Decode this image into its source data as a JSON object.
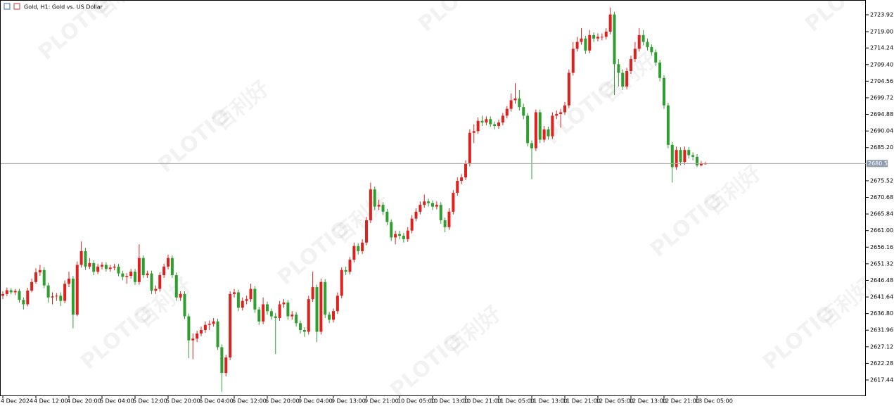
{
  "chart_data": {
    "type": "candlestick",
    "title": "Gold, H1:  Gold vs. US Dollar",
    "watermarks": [
      "PLOTIO",
      "百利好"
    ],
    "categories": [
      "4 Dec 2024",
      null,
      null,
      null,
      null,
      null,
      null,
      null,
      "4 Dec 12:00",
      null,
      null,
      null,
      null,
      null,
      null,
      null,
      "4 Dec 20:00",
      null,
      null,
      null,
      null,
      null,
      null,
      null,
      "5 Dec 04:00",
      null,
      null,
      null,
      null,
      null,
      null,
      null,
      "5 Dec 12:00",
      null,
      null,
      null,
      null,
      null,
      null,
      null,
      "5 Dec 20:00",
      null,
      null,
      null,
      null,
      null,
      null,
      null,
      "6 Dec 04:00",
      null,
      null,
      null,
      null,
      null,
      null,
      null,
      "6 Dec 12:00",
      null,
      null,
      null,
      null,
      null,
      null,
      null,
      "6 Dec 20:00",
      null,
      null,
      null,
      null,
      null,
      null,
      null,
      "9 Dec 04:00",
      null,
      null,
      null,
      null,
      null,
      null,
      null,
      "9 Dec 13:00",
      null,
      null,
      null,
      null,
      null,
      null,
      null,
      "9 Dec 21:00",
      null,
      null,
      null,
      null,
      null,
      null,
      null,
      "10 Dec 05:00",
      null,
      null,
      null,
      null,
      null,
      null,
      null,
      "10 Dec 13:00",
      null,
      null,
      null,
      null,
      null,
      null,
      null,
      "10 Dec 21:00",
      null,
      null,
      null,
      null,
      null,
      null,
      null,
      "11 Dec 05:00",
      null,
      null,
      null,
      null,
      null,
      null,
      null,
      "11 Dec 13:00",
      null,
      null,
      null,
      null,
      null,
      null,
      null,
      "11 Dec 21:00",
      null,
      null,
      null,
      null,
      null,
      null,
      null,
      "12 Dec 05:00",
      null,
      null,
      null,
      null,
      null,
      null,
      null,
      "12 Dec 13:00",
      null,
      null,
      null,
      null,
      null,
      null,
      null,
      "12 Dec 21:00",
      null,
      null,
      null,
      null,
      null,
      null,
      null,
      "13 Dec 05:00",
      null,
      null
    ],
    "open": [
      2642.0,
      2642.5,
      2643.6,
      2643.0,
      2643.4,
      2640.8,
      2639.5,
      2643.5,
      2646.0,
      2648.8,
      2649.5,
      2645.0,
      2641.5,
      2641.8,
      2642.0,
      2640.5,
      2645.5,
      2647.0,
      2636.5,
      2651.0,
      2655.0,
      2650.5,
      2651.5,
      2649.0,
      2650.5,
      2651.0,
      2649.8,
      2650.2,
      2650.5,
      2648.5,
      2647.5,
      2647.8,
      2649.0,
      2646.0,
      2653.0,
      2648.0,
      2648.5,
      2643.5,
      2644.0,
      2648.0,
      2650.5,
      2653.0,
      2648.0,
      2641.5,
      2642.5,
      2636.0,
      2629.0,
      2629.5,
      2631.0,
      2632.0,
      2633.5,
      2633.8,
      2634.5,
      2627.0,
      2619.5,
      2624.0,
      2642.5,
      2643.0,
      2638.5,
      2640.5,
      2641.0,
      2644.0,
      2638.0,
      2634.5,
      2639.5,
      2637.5,
      2636.0,
      2635.5,
      2639.5,
      2640.0,
      2636.0,
      2636.5,
      2634.0,
      2632.0,
      2631.5,
      2641.0,
      2644.5,
      2631.5,
      2646.0,
      2636.5,
      2635.0,
      2637.5,
      2642.0,
      2649.5,
      2649.0,
      2652.5,
      2656.5,
      2655.0,
      2657.5,
      2664.0,
      2673.0,
      2668.0,
      2668.5,
      2666.5,
      2663.5,
      2659.0,
      2660.0,
      2659.5,
      2658.5,
      2661.0,
      2664.5,
      2666.5,
      2668.5,
      2669.5,
      2669.0,
      2668.0,
      2668.5,
      2664.0,
      2662.0,
      2666.5,
      2672.0,
      2675.5,
      2676.5,
      2680.5,
      2689.5,
      2690.0,
      2693.0,
      2692.5,
      2693.5,
      2692.0,
      2691.5,
      2692.5,
      2694.5,
      2696.5,
      2699.0,
      2699.5,
      2697.0,
      2694.5,
      2686.5,
      2685.0,
      2695.5,
      2687.5,
      2690.5,
      2688.5,
      2694.5,
      2695.0,
      2695.5,
      2697.5,
      2707.0,
      2714.0,
      2716.0,
      2717.0,
      2713.5,
      2718.0,
      2717.0,
      2717.5,
      2717.5,
      2719.0,
      2724.0,
      2709.5,
      2707.0,
      2703.0,
      2707.5,
      2711.0,
      2714.0,
      2718.0,
      2716.0,
      2714.5,
      2713.0,
      2710.0,
      2705.5,
      2697.5,
      2686.0,
      2679.5,
      2684.5,
      2681.0,
      2684.5,
      2683.0,
      2682.5,
      2680.0,
      2680.5
    ],
    "high": [
      2643.3,
      2644.4,
      2644.2,
      2644.0,
      2644.0,
      2641.5,
      2644.3,
      2647.0,
      2650.0,
      2651.0,
      2650.3,
      2645.8,
      2643.0,
      2642.8,
      2643.0,
      2646.5,
      2649.0,
      2647.8,
      2652.0,
      2657.8,
      2656.0,
      2653.0,
      2652.3,
      2651.3,
      2651.8,
      2651.8,
      2651.0,
      2651.3,
      2651.3,
      2649.3,
      2648.6,
      2649.8,
      2649.8,
      2657.0,
      2653.8,
      2649.3,
      2649.3,
      2645.0,
      2648.8,
      2651.3,
      2654.0,
      2653.8,
      2648.8,
      2643.3,
      2643.3,
      2636.8,
      2631.0,
      2631.8,
      2633.0,
      2634.5,
      2634.8,
      2635.5,
      2635.3,
      2627.8,
      2624.8,
      2643.3,
      2644.0,
      2643.8,
      2641.5,
      2642.0,
      2645.5,
      2644.8,
      2638.8,
      2641.5,
      2640.3,
      2638.3,
      2637.0,
      2640.5,
      2641.0,
      2640.8,
      2637.5,
      2637.3,
      2634.8,
      2632.8,
      2642.0,
      2649.0,
      2645.3,
      2647.0,
      2646.8,
      2637.3,
      2638.3,
      2643.0,
      2650.3,
      2650.5,
      2653.3,
      2657.5,
      2657.3,
      2658.5,
      2665.0,
      2675.0,
      2673.8,
      2670.0,
      2669.3,
      2667.3,
      2664.3,
      2661.0,
      2661.0,
      2660.3,
      2662.0,
      2665.5,
      2667.5,
      2669.5,
      2671.5,
      2670.3,
      2669.8,
      2669.5,
      2669.3,
      2664.8,
      2667.5,
      2672.8,
      2676.5,
      2677.5,
      2681.5,
      2690.5,
      2692.0,
      2694.0,
      2694.5,
      2694.3,
      2694.3,
      2692.8,
      2693.3,
      2695.3,
      2697.3,
      2701.0,
      2704.0,
      2702.0,
      2698.0,
      2695.3,
      2687.3,
      2696.3,
      2696.3,
      2691.5,
      2691.3,
      2695.5,
      2696.0,
      2696.5,
      2698.5,
      2708.0,
      2716.0,
      2717.5,
      2720.0,
      2717.8,
      2719.5,
      2718.8,
      2718.5,
      2718.5,
      2720.0,
      2726.0,
      2724.8,
      2711.0,
      2708.0,
      2708.5,
      2712.0,
      2716.0,
      2720.0,
      2719.5,
      2717.0,
      2715.3,
      2713.8,
      2710.8,
      2706.3,
      2698.3,
      2686.8,
      2685.5,
      2685.3,
      2685.5,
      2685.3,
      2683.8,
      2683.3,
      2681.3,
      2681.0
    ],
    "low": [
      2641.0,
      2641.9,
      2642.4,
      2642.2,
      2640.0,
      2638.0,
      2638.9,
      2643.0,
      2645.5,
      2647.8,
      2644.2,
      2640.0,
      2639.5,
      2640.5,
      2639.0,
      2639.8,
      2644.5,
      2632.5,
      2636.0,
      2650.2,
      2649.5,
      2649.8,
      2648.0,
      2648.3,
      2649.7,
      2649.0,
      2649.0,
      2649.4,
      2647.7,
      2646.5,
      2645.5,
      2647.0,
      2645.2,
      2645.2,
      2647.2,
      2647.2,
      2642.5,
      2642.5,
      2643.2,
      2647.2,
      2649.7,
      2647.2,
      2640.5,
      2640.5,
      2635.2,
      2623.8,
      2623.5,
      2628.5,
      2630.2,
      2631.2,
      2632.0,
      2633.0,
      2626.2,
      2614.0,
      2618.5,
      2623.2,
      2641.5,
      2637.5,
      2637.7,
      2639.5,
      2640.2,
      2637.0,
      2633.5,
      2633.7,
      2636.5,
      2635.0,
      2625.0,
      2634.7,
      2638.5,
      2635.0,
      2635.0,
      2633.0,
      2631.0,
      2630.0,
      2630.7,
      2640.2,
      2628.5,
      2630.7,
      2635.5,
      2634.0,
      2634.2,
      2636.7,
      2641.2,
      2648.0,
      2648.2,
      2651.7,
      2654.0,
      2654.2,
      2656.7,
      2663.2,
      2667.0,
      2667.0,
      2665.5,
      2662.5,
      2658.0,
      2657.0,
      2658.5,
      2657.5,
      2657.7,
      2660.2,
      2663.7,
      2665.7,
      2667.7,
      2668.0,
      2667.0,
      2667.2,
      2663.0,
      2660.5,
      2661.2,
      2665.7,
      2671.2,
      2674.5,
      2675.7,
      2679.7,
      2686.5,
      2689.2,
      2691.5,
      2691.7,
      2691.2,
      2690.5,
      2690.7,
      2691.7,
      2693.7,
      2695.7,
      2698.0,
      2696.0,
      2693.5,
      2685.5,
      2676.0,
      2684.2,
      2686.5,
      2686.7,
      2687.5,
      2687.7,
      2693.5,
      2691.0,
      2694.7,
      2696.7,
      2706.2,
      2713.2,
      2715.2,
      2712.5,
      2712.7,
      2716.0,
      2716.2,
      2716.5,
      2716.7,
      2718.2,
      2700.5,
      2703.0,
      2702.0,
      2702.2,
      2706.7,
      2710.2,
      2713.2,
      2715.0,
      2713.5,
      2712.0,
      2709.0,
      2704.5,
      2696.5,
      2685.0,
      2675.0,
      2678.7,
      2680.0,
      2680.2,
      2682.0,
      2681.5,
      2679.5,
      2679.7,
      2680.2
    ],
    "close": [
      2642.5,
      2643.6,
      2643.0,
      2643.4,
      2640.8,
      2639.5,
      2643.5,
      2646.0,
      2648.8,
      2649.5,
      2645.0,
      2641.5,
      2641.8,
      2642.0,
      2640.5,
      2645.5,
      2647.0,
      2636.5,
      2651.0,
      2655.0,
      2650.5,
      2651.5,
      2649.0,
      2650.5,
      2651.0,
      2649.8,
      2650.2,
      2650.5,
      2648.5,
      2647.5,
      2647.8,
      2649.0,
      2646.0,
      2653.0,
      2648.0,
      2648.5,
      2643.5,
      2644.0,
      2648.0,
      2650.5,
      2653.0,
      2648.0,
      2641.5,
      2642.5,
      2636.0,
      2629.0,
      2629.5,
      2631.0,
      2632.0,
      2633.5,
      2633.8,
      2634.5,
      2627.0,
      2619.5,
      2624.0,
      2642.5,
      2643.0,
      2638.5,
      2640.5,
      2641.0,
      2644.0,
      2638.0,
      2634.5,
      2639.5,
      2637.5,
      2636.0,
      2635.5,
      2639.5,
      2640.0,
      2636.0,
      2636.5,
      2634.0,
      2632.0,
      2631.5,
      2641.0,
      2644.5,
      2631.5,
      2646.0,
      2636.5,
      2635.0,
      2637.5,
      2642.0,
      2649.5,
      2649.0,
      2652.5,
      2656.5,
      2655.0,
      2657.5,
      2664.0,
      2673.0,
      2668.0,
      2668.5,
      2666.5,
      2663.5,
      2659.0,
      2660.0,
      2659.5,
      2658.5,
      2661.0,
      2664.5,
      2666.5,
      2668.5,
      2669.5,
      2669.0,
      2668.0,
      2668.5,
      2664.0,
      2662.0,
      2666.5,
      2672.0,
      2675.5,
      2676.5,
      2680.5,
      2689.5,
      2690.0,
      2693.0,
      2692.5,
      2693.5,
      2692.0,
      2691.5,
      2692.5,
      2694.5,
      2696.5,
      2699.0,
      2699.5,
      2697.0,
      2694.5,
      2686.5,
      2685.0,
      2695.5,
      2687.5,
      2690.5,
      2688.5,
      2694.5,
      2695.0,
      2695.5,
      2697.5,
      2707.0,
      2714.0,
      2716.0,
      2717.0,
      2713.5,
      2718.0,
      2717.0,
      2717.5,
      2717.5,
      2719.0,
      2724.0,
      2709.5,
      2707.0,
      2703.0,
      2707.5,
      2711.0,
      2714.0,
      2718.0,
      2716.0,
      2714.5,
      2713.0,
      2710.0,
      2705.5,
      2697.5,
      2686.0,
      2679.5,
      2684.5,
      2681.0,
      2684.5,
      2683.0,
      2682.5,
      2680.0,
      2680.5,
      2680.56
    ],
    "up_color": "#e0201c",
    "down_color": "#2f9e2f",
    "ylim": [
      2612.93,
      2728.23
    ],
    "yticks": [
      2723.92,
      {
        "value": 2719.0,
        "label": "2719.00"
      },
      2714.24,
      {
        "value": 2709.4,
        "label": "2709.40"
      },
      2704.56,
      2699.72,
      2694.88,
      2690.04,
      {
        "value": 2685.2,
        "label": "2685.20"
      },
      2675.52,
      2670.68,
      2665.84,
      {
        "value": 2661.0,
        "label": "2661.00"
      },
      2656.16,
      2651.32,
      2646.48,
      2641.64,
      {
        "value": 2636.8,
        "label": "2636.80"
      },
      2631.96,
      2627.12,
      2622.28,
      2617.44
    ],
    "last_price_line": true
  }
}
